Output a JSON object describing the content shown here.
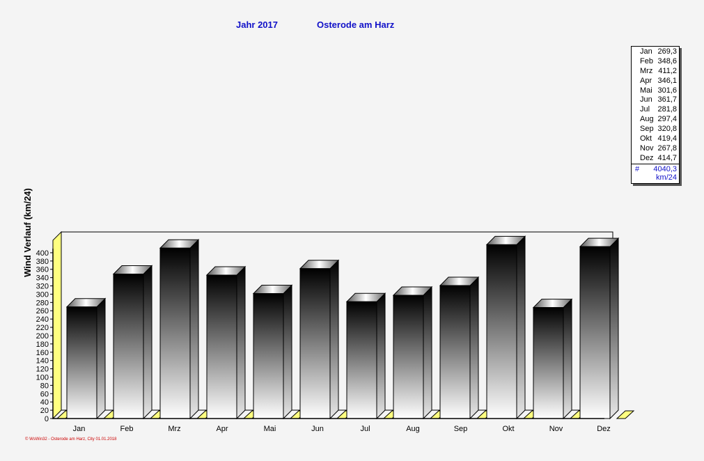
{
  "header": {
    "year_label": "Jahr  2017",
    "location": "Osterode am Harz"
  },
  "chart_data": {
    "type": "bar",
    "categories": [
      "Jan",
      "Feb",
      "Mrz",
      "Apr",
      "Mai",
      "Jun",
      "Jul",
      "Aug",
      "Sep",
      "Okt",
      "Nov",
      "Dez"
    ],
    "values": [
      269.3,
      348.6,
      411.2,
      346.1,
      301.6,
      361.7,
      281.8,
      297.4,
      320.8,
      419.4,
      267.8,
      414.7
    ],
    "ylabel": "Wind Verlauf  (km/24)",
    "ylim": [
      0,
      420
    ],
    "yticks": [
      0,
      20,
      40,
      60,
      80,
      100,
      120,
      140,
      160,
      180,
      200,
      220,
      240,
      260,
      280,
      300,
      320,
      340,
      360,
      380,
      400
    ],
    "grid": true,
    "legend_position": "right",
    "colors": {
      "bar_top": "#000000",
      "bar_bottom": "#ffffff",
      "wall": "#ffff80",
      "title": "#1010c8"
    }
  },
  "legend": {
    "items": [
      {
        "label": "Jan",
        "value": "269,3"
      },
      {
        "label": "Feb",
        "value": "348,6"
      },
      {
        "label": "Mrz",
        "value": "411,2"
      },
      {
        "label": "Apr",
        "value": "346,1"
      },
      {
        "label": "Mai",
        "value": "301,6"
      },
      {
        "label": "Jun",
        "value": "361,7"
      },
      {
        "label": "Jul",
        "value": "281,8"
      },
      {
        "label": "Aug",
        "value": "297,4"
      },
      {
        "label": "Sep",
        "value": "320,8"
      },
      {
        "label": "Okt",
        "value": "419,4"
      },
      {
        "label": "Nov",
        "value": "267,8"
      },
      {
        "label": "Dez",
        "value": "414,7"
      }
    ],
    "total_symbol": "#",
    "total_value": "4040,3",
    "total_unit": "km/24"
  },
  "footer": {
    "text": "© WsWin32 - Osterode am Harz, City  01.01.2018"
  }
}
